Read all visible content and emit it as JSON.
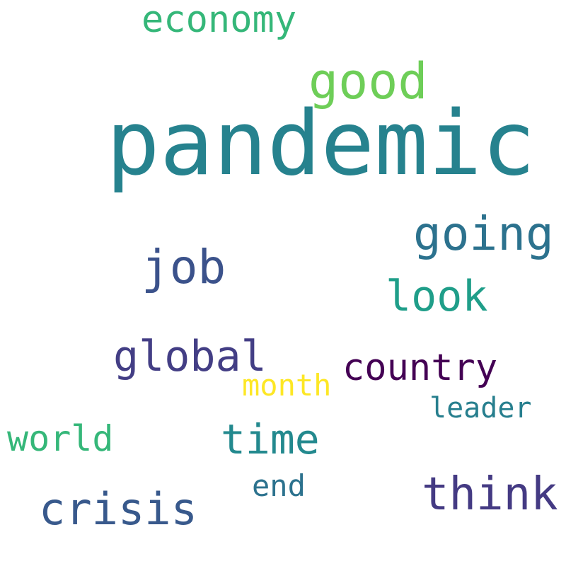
{
  "words": [
    {
      "text": "pandemic",
      "color": "#26828e"
    },
    {
      "text": "good",
      "color": "#6ece58"
    },
    {
      "text": "economy",
      "color": "#35b779"
    },
    {
      "text": "going",
      "color": "#2c728e"
    },
    {
      "text": "job",
      "color": "#3b528b"
    },
    {
      "text": "look",
      "color": "#1f9e89"
    },
    {
      "text": "global",
      "color": "#433e85"
    },
    {
      "text": "country",
      "color": "#440154"
    },
    {
      "text": "month",
      "color": "#fde725"
    },
    {
      "text": "leader",
      "color": "#277f8e"
    },
    {
      "text": "world",
      "color": "#35b779"
    },
    {
      "text": "time",
      "color": "#23898e"
    },
    {
      "text": "end",
      "color": "#2c728e"
    },
    {
      "text": "think",
      "color": "#443a83"
    },
    {
      "text": "crisis",
      "color": "#38598c"
    }
  ]
}
